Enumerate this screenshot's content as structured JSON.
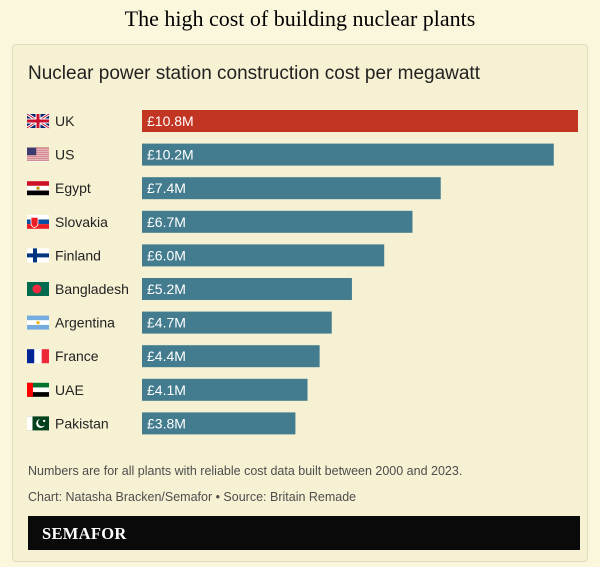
{
  "page": {
    "title": "The high cost of building nuclear plants"
  },
  "chart_data": {
    "type": "bar",
    "orientation": "horizontal",
    "title": "Nuclear power station construction cost per megawatt",
    "categories": [
      "UK",
      "US",
      "Egypt",
      "Slovakia",
      "Finland",
      "Bangladesh",
      "Argentina",
      "France",
      "UAE",
      "Pakistan"
    ],
    "values": [
      10.8,
      10.2,
      7.4,
      6.7,
      6.0,
      5.2,
      4.7,
      4.4,
      4.1,
      3.8
    ],
    "value_labels": [
      "£10.8M",
      "£10.2M",
      "£7.4M",
      "£6.7M",
      "£6.0M",
      "£5.2M",
      "£4.7M",
      "£4.4M",
      "£4.1M",
      "£3.8M"
    ],
    "unit": "£M per megawatt",
    "xlim": [
      0,
      10.8
    ],
    "highlight_category": "UK",
    "colors": {
      "highlight": "#c33523",
      "default": "#437c8e"
    },
    "flags": [
      "uk-flag-icon",
      "us-flag-icon",
      "egypt-flag-icon",
      "slovakia-flag-icon",
      "finland-flag-icon",
      "bangladesh-flag-icon",
      "argentina-flag-icon",
      "france-flag-icon",
      "uae-flag-icon",
      "pakistan-flag-icon"
    ],
    "xlabel": "",
    "ylabel": ""
  },
  "footer": {
    "note": "Numbers are for all plants with reliable cost data built between 2000 and 2023.",
    "credit": "Chart: Natasha Bracken/Semafor • Source: Britain Remade",
    "brand": "SEMAFOR"
  }
}
